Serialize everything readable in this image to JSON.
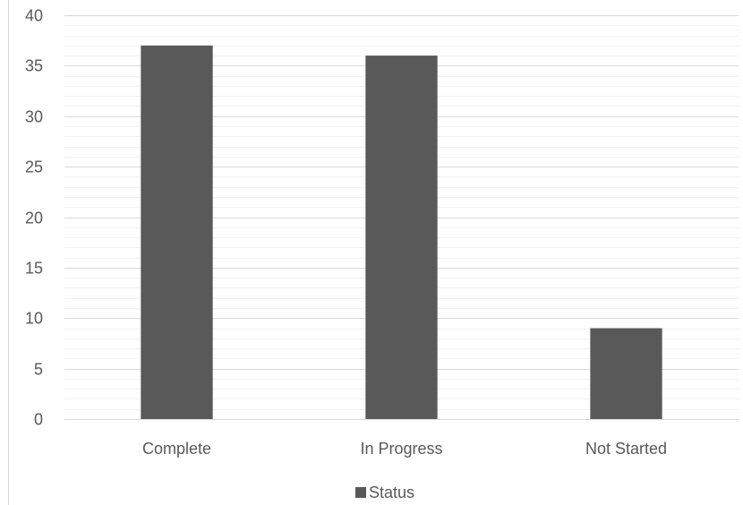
{
  "chart_data": {
    "type": "bar",
    "categories": [
      "Complete",
      "In Progress",
      "Not Started"
    ],
    "series": [
      {
        "name": "Status",
        "values": [
          37,
          36,
          9
        ],
        "color": "#595959"
      }
    ],
    "ylim": [
      0,
      40
    ],
    "yticks": [
      0,
      5,
      10,
      15,
      20,
      25,
      30,
      35,
      40
    ],
    "minor_grid_step": 1,
    "grid": true,
    "legend": "bottom",
    "title": "",
    "xlabel": "",
    "ylabel": ""
  }
}
